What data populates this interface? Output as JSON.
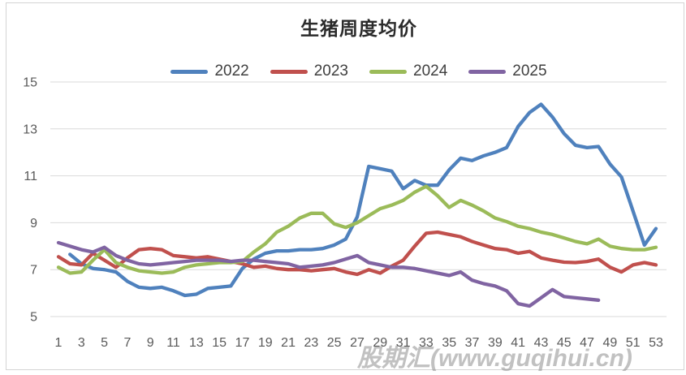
{
  "watermark": {
    "text": "股期汇(www.guqihui.cn)"
  },
  "chart_data": {
    "type": "line",
    "title": "生猪周度均价",
    "xlabel": "",
    "ylabel": "",
    "x_unit": "week",
    "x_range": [
      1,
      53
    ],
    "xticks": [
      1,
      3,
      5,
      7,
      9,
      11,
      13,
      15,
      17,
      19,
      21,
      23,
      25,
      27,
      29,
      31,
      33,
      35,
      37,
      39,
      41,
      43,
      45,
      47,
      49,
      51,
      53
    ],
    "ylim": [
      5,
      15
    ],
    "yticks": [
      5,
      7,
      9,
      11,
      13,
      15
    ],
    "grid": "horizontal",
    "gridline_color": "#d9d9d9",
    "legend_position": "top",
    "series": [
      {
        "name": "2022",
        "color": "#4F81BD",
        "values": [
          null,
          7.65,
          7.25,
          7.05,
          7.0,
          6.9,
          6.5,
          6.25,
          6.2,
          6.25,
          6.1,
          5.9,
          5.95,
          6.2,
          6.25,
          6.3,
          7.05,
          7.45,
          7.7,
          7.8,
          7.8,
          7.85,
          7.85,
          7.9,
          8.05,
          8.3,
          9.25,
          11.4,
          11.3,
          11.2,
          10.45,
          10.8,
          10.6,
          10.6,
          11.25,
          11.75,
          11.65,
          11.85,
          12.0,
          12.2,
          13.1,
          13.7,
          14.05,
          13.5,
          12.8,
          12.3,
          12.2,
          12.25,
          11.5,
          10.95,
          9.5,
          8.05,
          8.75
        ]
      },
      {
        "name": "2023",
        "color": "#C0504D",
        "values": [
          7.55,
          7.25,
          7.2,
          7.7,
          7.4,
          7.1,
          7.5,
          7.85,
          7.9,
          7.85,
          7.6,
          7.55,
          7.5,
          7.55,
          7.45,
          7.35,
          7.25,
          7.1,
          7.15,
          7.05,
          7.0,
          7.0,
          6.95,
          7.0,
          7.05,
          6.9,
          6.8,
          7.0,
          6.85,
          7.15,
          7.4,
          8.0,
          8.55,
          8.6,
          8.5,
          8.4,
          8.2,
          8.05,
          7.9,
          7.85,
          7.7,
          7.78,
          7.5,
          7.4,
          7.32,
          7.3,
          7.35,
          7.45,
          7.1,
          6.9,
          7.2,
          7.3,
          7.2
        ]
      },
      {
        "name": "2024",
        "color": "#9BBB59",
        "values": [
          7.1,
          6.85,
          6.9,
          7.4,
          7.85,
          7.3,
          7.1,
          6.95,
          6.9,
          6.85,
          6.9,
          7.1,
          7.2,
          7.25,
          7.3,
          7.3,
          7.35,
          7.75,
          8.1,
          8.6,
          8.85,
          9.2,
          9.4,
          9.4,
          8.95,
          8.8,
          9.0,
          9.3,
          9.6,
          9.75,
          9.95,
          10.3,
          10.55,
          10.15,
          9.65,
          9.95,
          9.75,
          9.5,
          9.2,
          9.05,
          8.85,
          8.75,
          8.6,
          8.5,
          8.35,
          8.2,
          8.1,
          8.3,
          8.0,
          7.9,
          7.85,
          7.85,
          7.95
        ]
      },
      {
        "name": "2025",
        "color": "#8064A2",
        "values": [
          8.15,
          8.0,
          7.85,
          7.75,
          7.95,
          7.6,
          7.4,
          7.25,
          7.2,
          7.25,
          7.3,
          7.35,
          7.4,
          7.4,
          7.4,
          7.35,
          7.4,
          7.4,
          7.35,
          7.3,
          7.25,
          7.1,
          7.15,
          7.2,
          7.3,
          7.45,
          7.6,
          7.3,
          7.2,
          7.1,
          7.1,
          7.05,
          6.95,
          6.85,
          6.75,
          6.9,
          6.55,
          6.4,
          6.3,
          6.1,
          5.55,
          5.45,
          5.8,
          6.15,
          5.85,
          5.8,
          5.75,
          5.7,
          null,
          null,
          null,
          null,
          null
        ]
      }
    ]
  }
}
